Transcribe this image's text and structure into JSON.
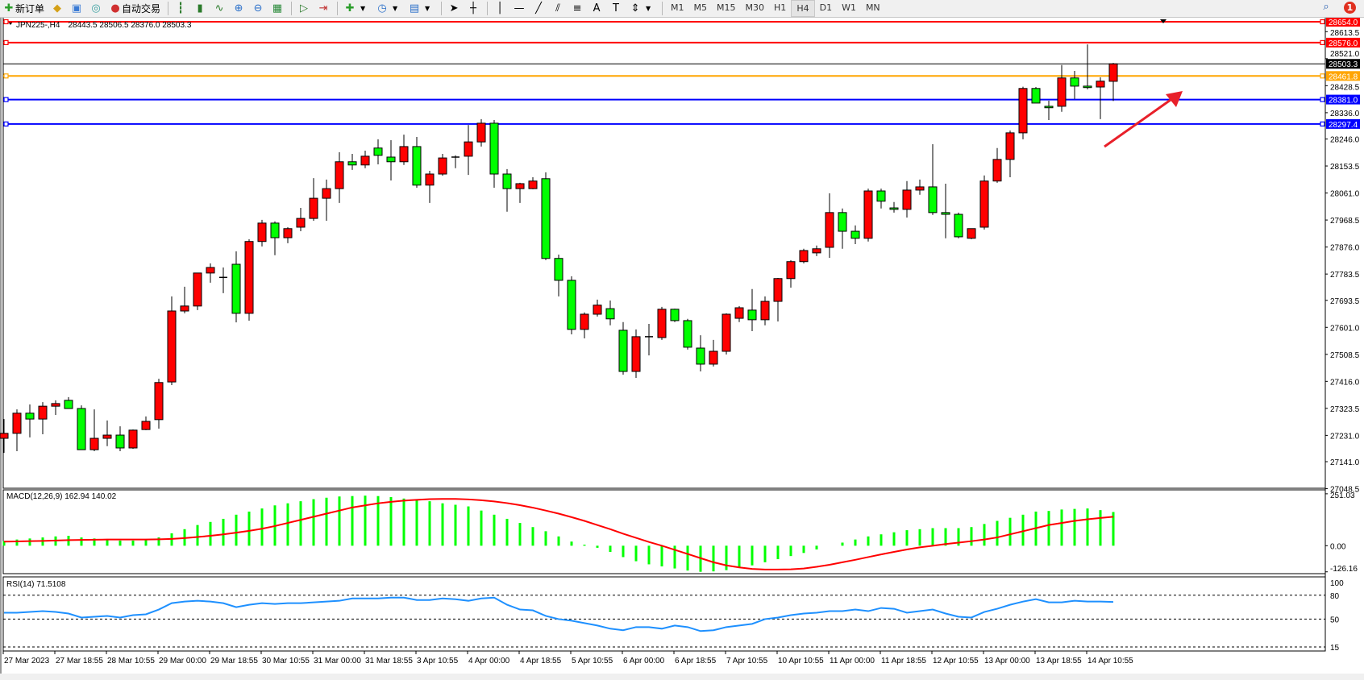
{
  "toolbar": {
    "new_order_label": "新订单",
    "auto_trading_label": "自动交易",
    "timeframes": [
      "M1",
      "M5",
      "M15",
      "M30",
      "H1",
      "H4",
      "D1",
      "W1",
      "MN"
    ],
    "active_timeframe": "H4",
    "notification_count": "1"
  },
  "chart_header": {
    "symbol": "JPN225-,H4",
    "ohlc": "28443.5 28506.5 28376.0 28503.3"
  },
  "colors": {
    "bull_candle": "#ff0000",
    "bear_candle": "#00ff00",
    "macd_histogram": "#00ff00",
    "macd_signal": "#ff0000",
    "rsi_line": "#1e90ff",
    "arrow": "#e8202a"
  },
  "chart_data": {
    "type": "candlestick",
    "symbol": "JPN225-",
    "timeframe": "H4",
    "ylim": [
      27050,
      28664
    ],
    "price_ticks": [
      "28613.5",
      "28521.0",
      "28428.5",
      "28336.0",
      "28246.0",
      "28153.5",
      "28061.0",
      "27968.5",
      "27876.0",
      "27783.5",
      "27693.5",
      "27601.0",
      "27508.5",
      "27416.0",
      "27323.5",
      "27231.0",
      "27141.0",
      "27048.5"
    ],
    "time_labels": [
      "27 Mar 2023",
      "27 Mar 18:55",
      "28 Mar 10:55",
      "29 Mar 00:00",
      "29 Mar 18:55",
      "30 Mar 10:55",
      "31 Mar 00:00",
      "31 Mar 18:55",
      "3 Apr 10:55",
      "4 Apr 00:00",
      "4 Apr 18:55",
      "5 Apr 10:55",
      "6 Apr 00:00",
      "6 Apr 18:55",
      "7 Apr 10:55",
      "10 Apr 10:55",
      "11 Apr 00:00",
      "11 Apr 18:55",
      "12 Apr 10:55",
      "13 Apr 00:00",
      "13 Apr 18:55",
      "14 Apr 10:55"
    ],
    "ohlc": [
      [
        27221,
        27287,
        27171,
        27238
      ],
      [
        27238,
        27320,
        27177,
        27307
      ],
      [
        27307,
        27337,
        27224,
        27287
      ],
      [
        27287,
        27345,
        27235,
        27331
      ],
      [
        27331,
        27351,
        27301,
        27340
      ],
      [
        27351,
        27362,
        27323,
        27323
      ],
      [
        27323,
        27334,
        27182,
        27182
      ],
      [
        27182,
        27320,
        27177,
        27221
      ],
      [
        27221,
        27282,
        27194,
        27232
      ],
      [
        27232,
        27262,
        27177,
        27188
      ],
      [
        27188,
        27251,
        27185,
        27249
      ],
      [
        27251,
        27296,
        27249,
        27279
      ],
      [
        27285,
        27425,
        27254,
        27412
      ],
      [
        27414,
        27707,
        27403,
        27657
      ],
      [
        27657,
        27740,
        27649,
        27674
      ],
      [
        27674,
        27787,
        27660,
        27787
      ],
      [
        27787,
        27820,
        27754,
        27806
      ],
      [
        27772,
        27806,
        27718,
        27770
      ],
      [
        27817,
        27861,
        27618,
        27649
      ],
      [
        27649,
        27903,
        27624,
        27895
      ],
      [
        27895,
        27969,
        27878,
        27958
      ],
      [
        27958,
        27964,
        27848,
        27908
      ],
      [
        27908,
        27944,
        27889,
        27939
      ],
      [
        27944,
        28010,
        27930,
        27974
      ],
      [
        27974,
        28112,
        27966,
        28043
      ],
      [
        28043,
        28107,
        27966,
        28076
      ],
      [
        28076,
        28201,
        28027,
        28168
      ],
      [
        28168,
        28195,
        28140,
        28157
      ],
      [
        28157,
        28206,
        28146,
        28187
      ],
      [
        28215,
        28245,
        28159,
        28190
      ],
      [
        28184,
        28242,
        28104,
        28168
      ],
      [
        28168,
        28261,
        28157,
        28220
      ],
      [
        28220,
        28253,
        28079,
        28088
      ],
      [
        28088,
        28137,
        28027,
        28126
      ],
      [
        28126,
        28195,
        28120,
        28181
      ],
      [
        28181,
        28190,
        28146,
        28184
      ],
      [
        28187,
        28294,
        28123,
        28236
      ],
      [
        28236,
        28314,
        28220,
        28300
      ],
      [
        28300,
        28311,
        28079,
        28126
      ],
      [
        28126,
        28143,
        27997,
        28076
      ],
      [
        28076,
        28096,
        28027,
        28093
      ],
      [
        28076,
        28115,
        28074,
        28102
      ],
      [
        28110,
        28132,
        27831,
        27837
      ],
      [
        27837,
        27850,
        27707,
        27762
      ],
      [
        27762,
        27776,
        27577,
        27594
      ],
      [
        27594,
        27652,
        27563,
        27646
      ],
      [
        27646,
        27696,
        27638,
        27677
      ],
      [
        27665,
        27693,
        27608,
        27630
      ],
      [
        27591,
        27619,
        27439,
        27450
      ],
      [
        27450,
        27594,
        27428,
        27569
      ],
      [
        27569,
        27613,
        27505,
        27566
      ],
      [
        27566,
        27671,
        27558,
        27663
      ],
      [
        27663,
        27665,
        27619,
        27624
      ],
      [
        27624,
        27630,
        27525,
        27533
      ],
      [
        27530,
        27574,
        27450,
        27475
      ],
      [
        27475,
        27558,
        27467,
        27519
      ],
      [
        27519,
        27649,
        27508,
        27646
      ],
      [
        27632,
        27674,
        27619,
        27668
      ],
      [
        27660,
        27732,
        27588,
        27627
      ],
      [
        27627,
        27707,
        27608,
        27690
      ],
      [
        27690,
        27770,
        27621,
        27768
      ],
      [
        27768,
        27831,
        27737,
        27826
      ],
      [
        27826,
        27870,
        27820,
        27864
      ],
      [
        27856,
        27881,
        27845,
        27870
      ],
      [
        27875,
        28060,
        27839,
        27994
      ],
      [
        27994,
        28008,
        27870,
        27930
      ],
      [
        27930,
        27950,
        27886,
        27906
      ],
      [
        27906,
        28076,
        27895,
        28068
      ],
      [
        28068,
        28076,
        28008,
        28033
      ],
      [
        28010,
        28030,
        27994,
        28005
      ],
      [
        28005,
        28102,
        27977,
        28071
      ],
      [
        28071,
        28107,
        28055,
        28082
      ],
      [
        28082,
        28228,
        27986,
        27994
      ],
      [
        27994,
        28093,
        27906,
        27988
      ],
      [
        27988,
        27994,
        27906,
        27911
      ],
      [
        27906,
        27939,
        27903,
        27939
      ],
      [
        27944,
        28121,
        27936,
        28102
      ],
      [
        28102,
        28215,
        28096,
        28176
      ],
      [
        28176,
        28275,
        28115,
        28267
      ],
      [
        28267,
        28425,
        28245,
        28419
      ],
      [
        28419,
        28424,
        28369,
        28369
      ],
      [
        28358,
        28377,
        28311,
        28353
      ],
      [
        28358,
        28499,
        28339,
        28455
      ],
      [
        28455,
        28479,
        28383,
        28427
      ],
      [
        28427,
        28570,
        28416,
        28422
      ],
      [
        28424,
        28457,
        28314,
        28444
      ],
      [
        28443.5,
        28506.5,
        28376.0,
        28503.3
      ]
    ],
    "horizontal_lines": [
      {
        "price": 28654.0,
        "label": "28654.0",
        "color": "#ff0000"
      },
      {
        "price": 28576.0,
        "label": "28576.0",
        "color": "#ff0000"
      },
      {
        "price": 28503.3,
        "label": "28503.3",
        "color": "#000000",
        "bid": true
      },
      {
        "price": 28461.8,
        "label": "28461.8",
        "color": "#ffa500"
      },
      {
        "price": 28381.0,
        "label": "28381.0",
        "color": "#0000ff"
      },
      {
        "price": 28297.4,
        "label": "28297.4",
        "color": "#0000ff"
      }
    ],
    "macd": {
      "label": "MACD(12,26,9) 162.94 140.02",
      "ylim": [
        -135,
        270
      ],
      "ticks": [
        "251.03",
        "0.00",
        "-126.16"
      ],
      "histogram": [
        22,
        30,
        35,
        40,
        45,
        48,
        40,
        35,
        30,
        25,
        25,
        28,
        40,
        60,
        80,
        100,
        115,
        130,
        150,
        165,
        180,
        195,
        205,
        215,
        225,
        232,
        238,
        240,
        242,
        240,
        235,
        228,
        222,
        215,
        205,
        198,
        190,
        170,
        150,
        130,
        110,
        90,
        70,
        45,
        20,
        5,
        -10,
        -30,
        -55,
        -75,
        -90,
        -100,
        -110,
        -120,
        -126,
        -124,
        -118,
        -108,
        -95,
        -80,
        -65,
        -50,
        -35,
        -18,
        0,
        15,
        30,
        45,
        55,
        65,
        75,
        80,
        85,
        85,
        85,
        90,
        105,
        120,
        135,
        150,
        165,
        168,
        175,
        178,
        180,
        172,
        162.94
      ],
      "signal": [
        20,
        21,
        22,
        23,
        25,
        27,
        28,
        29,
        30,
        30,
        30,
        30,
        31,
        33,
        37,
        42,
        48,
        55,
        63,
        72,
        82,
        95,
        110,
        125,
        140,
        155,
        170,
        185,
        195,
        205,
        212,
        218,
        222,
        225,
        226,
        226,
        224,
        220,
        214,
        206,
        196,
        184,
        170,
        155,
        138,
        120,
        100,
        80,
        58,
        38,
        18,
        0,
        -20,
        -40,
        -60,
        -80,
        -95,
        -105,
        -112,
        -115,
        -115,
        -114,
        -110,
        -102,
        -92,
        -80,
        -68,
        -55,
        -42,
        -30,
        -18,
        -8,
        0,
        8,
        15,
        22,
        30,
        40,
        55,
        70,
        85,
        100,
        110,
        120,
        128,
        134,
        140.02
      ]
    },
    "rsi": {
      "label": "RSI(14) 71.5108",
      "ylim": [
        10,
        103
      ],
      "ticks": [
        "100",
        "80",
        "50",
        "15"
      ],
      "levels": [
        80,
        50,
        15
      ],
      "values": [
        58,
        58,
        59,
        60,
        59,
        57,
        52,
        53,
        54,
        52,
        55,
        56,
        62,
        70,
        72,
        73,
        72,
        70,
        65,
        68,
        70,
        69,
        70,
        70,
        71,
        72,
        73,
        76,
        76,
        76,
        77,
        77,
        74,
        74,
        76,
        75,
        73,
        76,
        77,
        68,
        62,
        61,
        54,
        50,
        48,
        45,
        42,
        38,
        36,
        40,
        40,
        38,
        42,
        40,
        35,
        36,
        40,
        42,
        44,
        50,
        52,
        55,
        57,
        58,
        60,
        60,
        62,
        60,
        64,
        63,
        58,
        60,
        62,
        57,
        53,
        52,
        59,
        63,
        68,
        72,
        75,
        71,
        71,
        73,
        72,
        72,
        71.51
      ]
    }
  }
}
